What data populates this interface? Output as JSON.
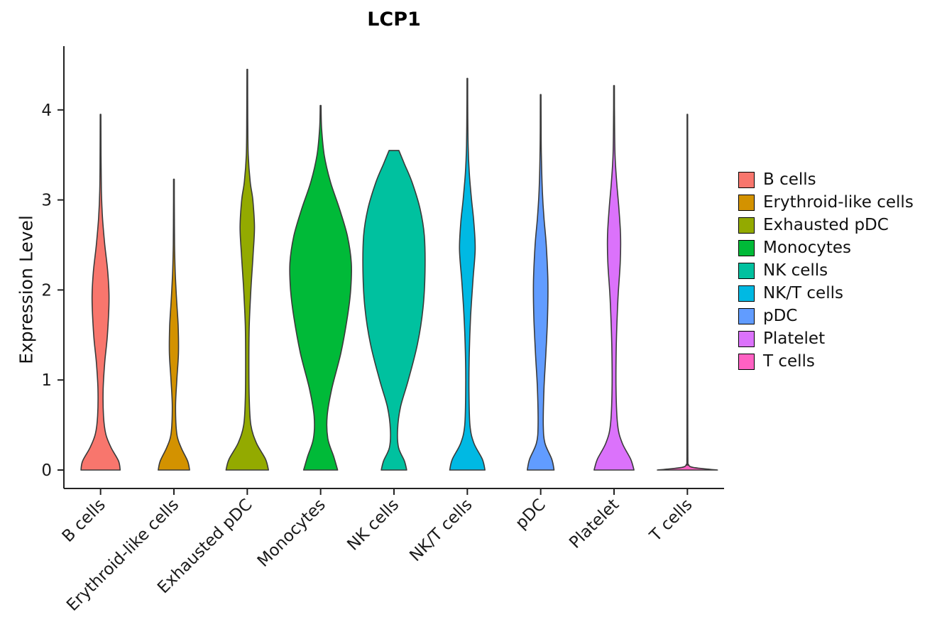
{
  "chart_data": {
    "type": "violin",
    "title": "LCP1",
    "ylabel": "Expression Level",
    "y_ticks": [
      0,
      1,
      2,
      3,
      4
    ],
    "ylim": [
      0,
      4.6
    ],
    "grid": false,
    "legend_position": "right",
    "categories": [
      "B cells",
      "Erythroid-like cells",
      "Exhausted pDC",
      "Monocytes",
      "NK cells",
      "NK/T cells",
      "pDC",
      "Platelet",
      "T cells"
    ],
    "colors": {
      "violin_outline": "#3A3A3A",
      "axis_line": "#222222",
      "axis_text": "#1a1a1a",
      "background": "#ffffff"
    },
    "series": [
      {
        "name": "B cells",
        "color": "#F8766D",
        "max_expression": 3.95,
        "density_profile": [
          [
            0,
            0.6
          ],
          [
            0.1,
            0.55
          ],
          [
            0.25,
            0.32
          ],
          [
            0.4,
            0.16
          ],
          [
            0.6,
            0.09
          ],
          [
            0.9,
            0.08
          ],
          [
            1.2,
            0.13
          ],
          [
            1.5,
            0.21
          ],
          [
            1.9,
            0.26
          ],
          [
            2.2,
            0.22
          ],
          [
            2.5,
            0.13
          ],
          [
            2.8,
            0.06
          ],
          [
            3.1,
            0.025
          ],
          [
            3.5,
            0.014
          ],
          [
            3.95,
            0.01
          ]
        ]
      },
      {
        "name": "Erythroid-like cells",
        "color": "#D39200",
        "max_expression": 3.23,
        "density_profile": [
          [
            0,
            0.48
          ],
          [
            0.1,
            0.42
          ],
          [
            0.25,
            0.22
          ],
          [
            0.4,
            0.09
          ],
          [
            0.7,
            0.05
          ],
          [
            1.0,
            0.09
          ],
          [
            1.3,
            0.14
          ],
          [
            1.6,
            0.13
          ],
          [
            1.9,
            0.08
          ],
          [
            2.2,
            0.04
          ],
          [
            2.5,
            0.02
          ],
          [
            2.9,
            0.013
          ],
          [
            3.23,
            0.01
          ]
        ]
      },
      {
        "name": "Exhausted pDC",
        "color": "#93AA00",
        "max_expression": 4.45,
        "density_profile": [
          [
            0,
            0.65
          ],
          [
            0.12,
            0.56
          ],
          [
            0.3,
            0.28
          ],
          [
            0.5,
            0.11
          ],
          [
            0.8,
            0.06
          ],
          [
            1.2,
            0.05
          ],
          [
            1.6,
            0.06
          ],
          [
            2.0,
            0.11
          ],
          [
            2.4,
            0.18
          ],
          [
            2.7,
            0.22
          ],
          [
            3.0,
            0.17
          ],
          [
            3.2,
            0.09
          ],
          [
            3.5,
            0.03
          ],
          [
            3.9,
            0.015
          ],
          [
            4.45,
            0.01
          ]
        ]
      },
      {
        "name": "Monocytes",
        "color": "#00BA38",
        "max_expression": 4.05,
        "density_profile": [
          [
            0,
            0.52
          ],
          [
            0.15,
            0.4
          ],
          [
            0.35,
            0.22
          ],
          [
            0.6,
            0.2
          ],
          [
            0.9,
            0.34
          ],
          [
            1.3,
            0.62
          ],
          [
            1.7,
            0.82
          ],
          [
            2.0,
            0.92
          ],
          [
            2.3,
            0.94
          ],
          [
            2.6,
            0.82
          ],
          [
            2.9,
            0.58
          ],
          [
            3.2,
            0.3
          ],
          [
            3.5,
            0.11
          ],
          [
            3.8,
            0.03
          ],
          [
            4.05,
            0.012
          ]
        ]
      },
      {
        "name": "NK cells",
        "color": "#00C19F",
        "max_expression": 3.55,
        "density_profile": [
          [
            0,
            0.39
          ],
          [
            0.1,
            0.32
          ],
          [
            0.25,
            0.14
          ],
          [
            0.45,
            0.11
          ],
          [
            0.7,
            0.2
          ],
          [
            1.0,
            0.44
          ],
          [
            1.4,
            0.72
          ],
          [
            1.8,
            0.89
          ],
          [
            2.2,
            0.95
          ],
          [
            2.6,
            0.93
          ],
          [
            2.9,
            0.8
          ],
          [
            3.2,
            0.55
          ],
          [
            3.4,
            0.32
          ],
          [
            3.55,
            0.15
          ]
        ]
      },
      {
        "name": "NK/T cells",
        "color": "#00B9E3",
        "max_expression": 4.35,
        "density_profile": [
          [
            0,
            0.54
          ],
          [
            0.12,
            0.46
          ],
          [
            0.3,
            0.2
          ],
          [
            0.5,
            0.08
          ],
          [
            0.9,
            0.05
          ],
          [
            1.3,
            0.06
          ],
          [
            1.7,
            0.1
          ],
          [
            2.1,
            0.17
          ],
          [
            2.45,
            0.24
          ],
          [
            2.75,
            0.2
          ],
          [
            3.0,
            0.13
          ],
          [
            3.3,
            0.06
          ],
          [
            3.6,
            0.025
          ],
          [
            4.0,
            0.013
          ],
          [
            4.35,
            0.01
          ]
        ]
      },
      {
        "name": "pDC",
        "color": "#619CFF",
        "max_expression": 4.17,
        "density_profile": [
          [
            0,
            0.41
          ],
          [
            0.12,
            0.34
          ],
          [
            0.3,
            0.13
          ],
          [
            0.5,
            0.08
          ],
          [
            0.9,
            0.1
          ],
          [
            1.3,
            0.16
          ],
          [
            1.7,
            0.21
          ],
          [
            2.1,
            0.22
          ],
          [
            2.5,
            0.17
          ],
          [
            2.8,
            0.1
          ],
          [
            3.1,
            0.05
          ],
          [
            3.5,
            0.02
          ],
          [
            3.8,
            0.013
          ],
          [
            4.17,
            0.01
          ]
        ]
      },
      {
        "name": "Platelet",
        "color": "#DB72FB",
        "max_expression": 4.27,
        "density_profile": [
          [
            0,
            0.61
          ],
          [
            0.12,
            0.51
          ],
          [
            0.3,
            0.25
          ],
          [
            0.5,
            0.11
          ],
          [
            0.9,
            0.06
          ],
          [
            1.4,
            0.07
          ],
          [
            1.9,
            0.12
          ],
          [
            2.3,
            0.19
          ],
          [
            2.6,
            0.2
          ],
          [
            2.9,
            0.15
          ],
          [
            3.2,
            0.08
          ],
          [
            3.5,
            0.03
          ],
          [
            3.9,
            0.015
          ],
          [
            4.27,
            0.01
          ]
        ]
      },
      {
        "name": "T cells",
        "color": "#FF61C3",
        "max_expression": 3.95,
        "density_profile": [
          [
            0,
            0.92
          ],
          [
            0.01,
            0.62
          ],
          [
            0.03,
            0.16
          ],
          [
            0.06,
            0.035
          ],
          [
            0.15,
            0.014
          ],
          [
            1.0,
            0.01
          ],
          [
            2.0,
            0.01
          ],
          [
            3.0,
            0.01
          ],
          [
            3.95,
            0.009
          ]
        ]
      }
    ]
  }
}
